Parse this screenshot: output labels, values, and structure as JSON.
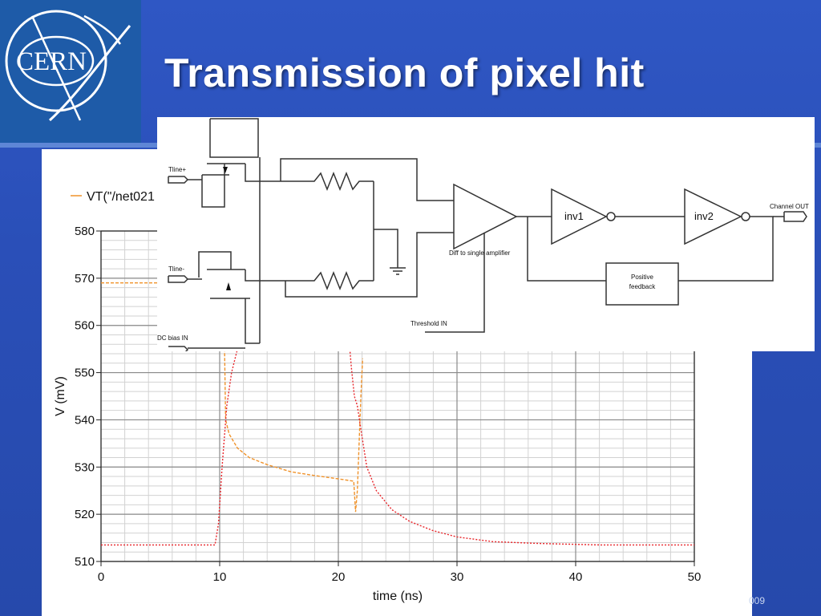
{
  "slide": {
    "title": "Transmission of pixel hit",
    "footer_year_fragment": "009",
    "background_color": "#2a4fb8",
    "logo_text": "CERN"
  },
  "chart_data": {
    "type": "line",
    "xlabel": "time (ns)",
    "ylabel": "V (mV)",
    "xlim": [
      0,
      50
    ],
    "ylim": [
      510,
      580
    ],
    "xticks": [
      0,
      10,
      20,
      30,
      40,
      50
    ],
    "yticks": [
      510,
      520,
      530,
      540,
      550,
      560,
      570,
      580
    ],
    "grid": true,
    "legend_position": "top-left",
    "legend_entries": [
      {
        "label": "VT(\"/net021",
        "color": "#f0922a"
      }
    ],
    "series": [
      {
        "name": "VT(\"/net021",
        "color": "#f0922a",
        "style": "dashed",
        "x": [
          0,
          9.6,
          9.8,
          10.0,
          10.2,
          10.5,
          10.8,
          11.5,
          12.5,
          14,
          16,
          18,
          20,
          21.3,
          21.45,
          21.6,
          21.75,
          21.9,
          22.05
        ],
        "y": [
          569,
          569,
          580,
          590,
          590,
          540,
          537,
          534,
          532,
          530.5,
          529,
          528.2,
          527.5,
          527,
          520.5,
          525,
          535,
          545,
          553
        ]
      },
      {
        "name": "",
        "color": "#e8252a",
        "style": "dotted",
        "x": [
          0,
          9.6,
          9.9,
          10.2,
          10.6,
          11.0,
          11.5,
          12.2,
          20.8,
          21.1,
          21.35,
          21.6,
          21.9,
          22.4,
          23.2,
          24.5,
          26,
          28,
          30,
          33,
          37,
          42,
          50
        ],
        "y": [
          513.5,
          513.5,
          518,
          530,
          543,
          550,
          555,
          560,
          560,
          551,
          545,
          543,
          538,
          530,
          525,
          521,
          518.5,
          516.5,
          515.2,
          514.2,
          513.8,
          513.5,
          513.5
        ]
      }
    ]
  },
  "schematic": {
    "inputs": {
      "tline_plus": "Tline+",
      "tline_minus": "Tline-",
      "dc_bias": "DC bias IN",
      "threshold": "Threshold IN"
    },
    "amplifier": "Diff to single amplifier",
    "inverter1": "inv1",
    "inverter2": "inv2",
    "feedback_line1": "Positive",
    "feedback_line2": "feedback",
    "output": "Channel OUT"
  }
}
